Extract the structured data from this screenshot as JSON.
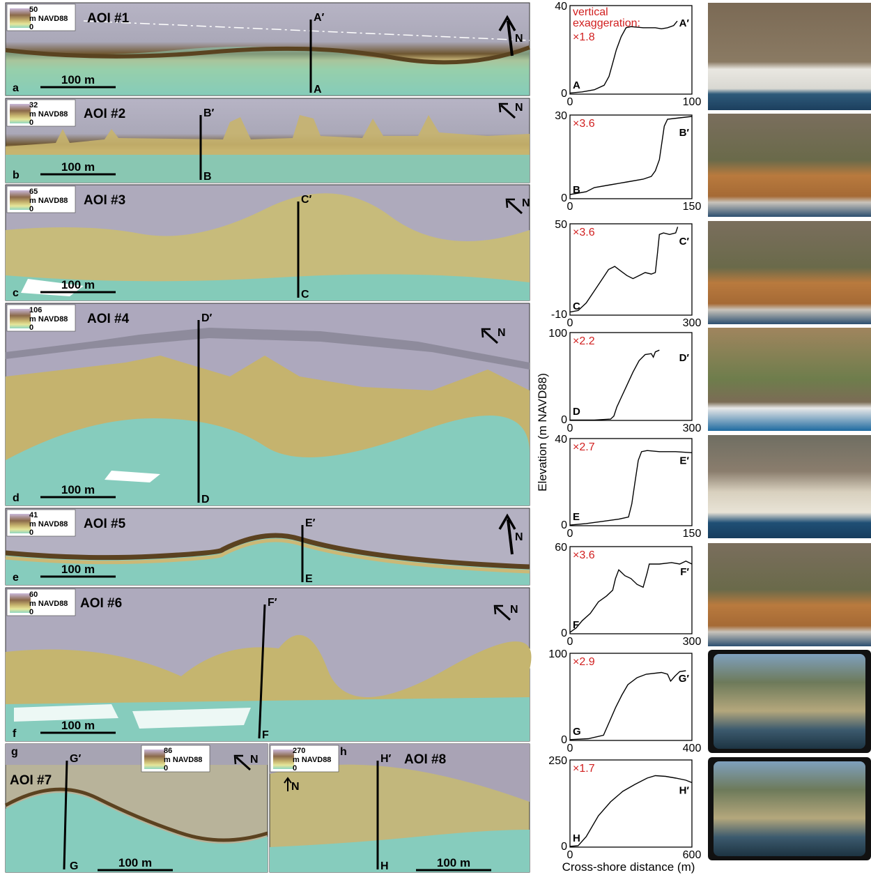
{
  "figure": {
    "x_axis_label": "Cross-shore distance (m)",
    "y_axis_label": "Elevation (m NAVD88)",
    "ve_heading_line1": "vertical",
    "ve_heading_line2": "exaggeration:",
    "scalebar_label": "100 m",
    "north_label": "N",
    "unit_label": "m NAVD88",
    "colors": {
      "profile_line": "#000000",
      "ve_text": "#d11f1f",
      "water_teal": "#7fc8bb",
      "relief_gray": "#b9b6c4",
      "cliff_tan": "#c9b97a",
      "cliff_brown": "#7a5a2c"
    }
  },
  "panels": [
    {
      "letter": "a",
      "aoi": "AOI #1",
      "cbar_max": "50",
      "cbar_min": "0",
      "start": "A",
      "end": "A′",
      "ve": "×1.8",
      "xmax": "100",
      "ymin": "0",
      "ymax": "40",
      "xrange": [
        0,
        100
      ],
      "yrange": [
        0,
        40
      ],
      "profile": [
        [
          0,
          0.5
        ],
        [
          10,
          1
        ],
        [
          20,
          2
        ],
        [
          28,
          4
        ],
        [
          32,
          8
        ],
        [
          35,
          14
        ],
        [
          38,
          20
        ],
        [
          42,
          26
        ],
        [
          46,
          30
        ],
        [
          50,
          30.5
        ],
        [
          60,
          30
        ],
        [
          70,
          30
        ],
        [
          75,
          29.5
        ],
        [
          80,
          30
        ],
        [
          85,
          31
        ],
        [
          88,
          33
        ]
      ]
    },
    {
      "letter": "b",
      "aoi": "AOI #2",
      "cbar_max": "32",
      "cbar_min": "0",
      "start": "B",
      "end": "B′",
      "ve": "×3.6",
      "xmax": "150",
      "ymin": "0",
      "ymax": "30",
      "xrange": [
        0,
        150
      ],
      "yrange": [
        0,
        30
      ],
      "profile": [
        [
          0,
          1.5
        ],
        [
          10,
          2
        ],
        [
          20,
          2.5
        ],
        [
          30,
          4
        ],
        [
          50,
          5
        ],
        [
          70,
          6
        ],
        [
          90,
          7
        ],
        [
          100,
          8
        ],
        [
          105,
          10
        ],
        [
          110,
          14
        ],
        [
          113,
          20
        ],
        [
          116,
          26
        ],
        [
          120,
          28.5
        ],
        [
          135,
          29
        ],
        [
          150,
          29.5
        ]
      ]
    },
    {
      "letter": "c",
      "aoi": "AOI #3",
      "cbar_max": "65",
      "cbar_min": "0",
      "start": "C",
      "end": "C′",
      "ve": "×3.6",
      "xmax": "300",
      "ymin": "-10",
      "ymax": "50",
      "xrange": [
        0,
        300
      ],
      "yrange": [
        -10,
        50
      ],
      "profile": [
        [
          0,
          -8
        ],
        [
          20,
          -7
        ],
        [
          40,
          -2
        ],
        [
          60,
          6
        ],
        [
          80,
          14
        ],
        [
          95,
          20
        ],
        [
          110,
          22
        ],
        [
          125,
          19
        ],
        [
          140,
          16
        ],
        [
          155,
          14
        ],
        [
          170,
          16
        ],
        [
          185,
          18
        ],
        [
          200,
          17
        ],
        [
          210,
          18
        ],
        [
          215,
          30
        ],
        [
          220,
          43
        ],
        [
          230,
          44
        ],
        [
          245,
          43
        ],
        [
          260,
          44
        ],
        [
          265,
          48
        ]
      ]
    },
    {
      "letter": "d",
      "aoi": "AOI #4",
      "cbar_max": "106",
      "cbar_min": "0",
      "start": "D",
      "end": "D′",
      "ve": "×2.2",
      "xmax": "300",
      "ymin": "0",
      "ymax": "100",
      "xrange": [
        0,
        300
      ],
      "yrange": [
        0,
        100
      ],
      "profile": [
        [
          0,
          0.5
        ],
        [
          60,
          0.5
        ],
        [
          100,
          1.5
        ],
        [
          108,
          5
        ],
        [
          115,
          15
        ],
        [
          125,
          25
        ],
        [
          140,
          40
        ],
        [
          155,
          55
        ],
        [
          170,
          68
        ],
        [
          185,
          75
        ],
        [
          200,
          76
        ],
        [
          205,
          72
        ],
        [
          210,
          78
        ],
        [
          220,
          80
        ]
      ]
    },
    {
      "letter": "e",
      "aoi": "AOI #5",
      "cbar_max": "41",
      "cbar_min": "0",
      "start": "E",
      "end": "E′",
      "ve": "×2.7",
      "xmax": "150",
      "ymin": "0",
      "ymax": "40",
      "xrange": [
        0,
        150
      ],
      "yrange": [
        0,
        40
      ],
      "profile": [
        [
          0,
          0.3
        ],
        [
          20,
          1
        ],
        [
          40,
          2
        ],
        [
          60,
          3
        ],
        [
          72,
          4
        ],
        [
          76,
          10
        ],
        [
          80,
          20
        ],
        [
          84,
          30
        ],
        [
          88,
          34
        ],
        [
          95,
          34.5
        ],
        [
          110,
          34
        ],
        [
          130,
          34
        ],
        [
          150,
          33.5
        ]
      ]
    },
    {
      "letter": "f",
      "aoi": "AOI #6",
      "cbar_max": "60",
      "cbar_min": "0",
      "start": "F",
      "end": "F′",
      "ve": "×3.6",
      "xmax": "300",
      "ymin": "0",
      "ymax": "60",
      "xrange": [
        0,
        300
      ],
      "yrange": [
        0,
        60
      ],
      "profile": [
        [
          0,
          1
        ],
        [
          15,
          4
        ],
        [
          30,
          9
        ],
        [
          50,
          14
        ],
        [
          70,
          22
        ],
        [
          90,
          26
        ],
        [
          105,
          30
        ],
        [
          112,
          38
        ],
        [
          120,
          44
        ],
        [
          135,
          40
        ],
        [
          150,
          38
        ],
        [
          165,
          34
        ],
        [
          180,
          32
        ],
        [
          190,
          42
        ],
        [
          195,
          48
        ],
        [
          220,
          48
        ],
        [
          250,
          49
        ],
        [
          270,
          48
        ],
        [
          285,
          50
        ],
        [
          300,
          48
        ]
      ]
    },
    {
      "letter": "g",
      "aoi": "AOI #7",
      "cbar_max": "86",
      "cbar_min": "0",
      "start": "G",
      "end": "G′",
      "ve": "×2.9",
      "xmax": "400",
      "ymin": "0",
      "ymax": "100",
      "xrange": [
        0,
        400
      ],
      "yrange": [
        0,
        100
      ],
      "profile": [
        [
          0,
          1
        ],
        [
          60,
          2
        ],
        [
          110,
          6
        ],
        [
          130,
          22
        ],
        [
          150,
          38
        ],
        [
          170,
          52
        ],
        [
          190,
          64
        ],
        [
          220,
          72
        ],
        [
          250,
          76
        ],
        [
          300,
          78
        ],
        [
          320,
          76
        ],
        [
          330,
          68
        ],
        [
          345,
          74
        ],
        [
          360,
          79
        ],
        [
          380,
          80
        ]
      ]
    },
    {
      "letter": "h",
      "aoi": "AOI #8",
      "cbar_max": "270",
      "cbar_min": "0",
      "start": "H",
      "end": "H′",
      "ve": "×1.7",
      "xmax": "600",
      "ymin": "0",
      "ymax": "250",
      "xrange": [
        0,
        600
      ],
      "yrange": [
        0,
        250
      ],
      "profile": [
        [
          0,
          2
        ],
        [
          40,
          4
        ],
        [
          80,
          30
        ],
        [
          140,
          90
        ],
        [
          200,
          130
        ],
        [
          260,
          160
        ],
        [
          320,
          180
        ],
        [
          380,
          198
        ],
        [
          420,
          205
        ],
        [
          470,
          203
        ],
        [
          520,
          198
        ],
        [
          570,
          192
        ],
        [
          600,
          185
        ]
      ]
    }
  ]
}
